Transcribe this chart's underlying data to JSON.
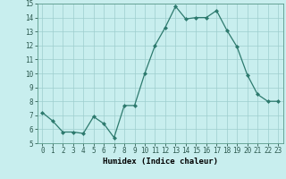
{
  "x": [
    0,
    1,
    2,
    3,
    4,
    5,
    6,
    7,
    8,
    9,
    10,
    11,
    12,
    13,
    14,
    15,
    16,
    17,
    18,
    19,
    20,
    21,
    22,
    23
  ],
  "y": [
    7.2,
    6.6,
    5.8,
    5.8,
    5.7,
    6.9,
    6.4,
    5.4,
    7.7,
    7.7,
    10.0,
    12.0,
    13.3,
    14.8,
    13.9,
    14.0,
    14.0,
    14.5,
    13.1,
    11.9,
    9.9,
    8.5,
    8.0,
    8.0
  ],
  "xlabel": "Humidex (Indice chaleur)",
  "ylim": [
    5,
    15
  ],
  "xlim": [
    -0.5,
    23.5
  ],
  "yticks": [
    5,
    6,
    7,
    8,
    9,
    10,
    11,
    12,
    13,
    14,
    15
  ],
  "xticks": [
    0,
    1,
    2,
    3,
    4,
    5,
    6,
    7,
    8,
    9,
    10,
    11,
    12,
    13,
    14,
    15,
    16,
    17,
    18,
    19,
    20,
    21,
    22,
    23
  ],
  "line_color": "#2d7a6e",
  "marker_color": "#2d7a6e",
  "bg_color": "#c8eeee",
  "grid_color": "#9ecece",
  "tick_fontsize": 5.5,
  "xlabel_fontsize": 6.5
}
